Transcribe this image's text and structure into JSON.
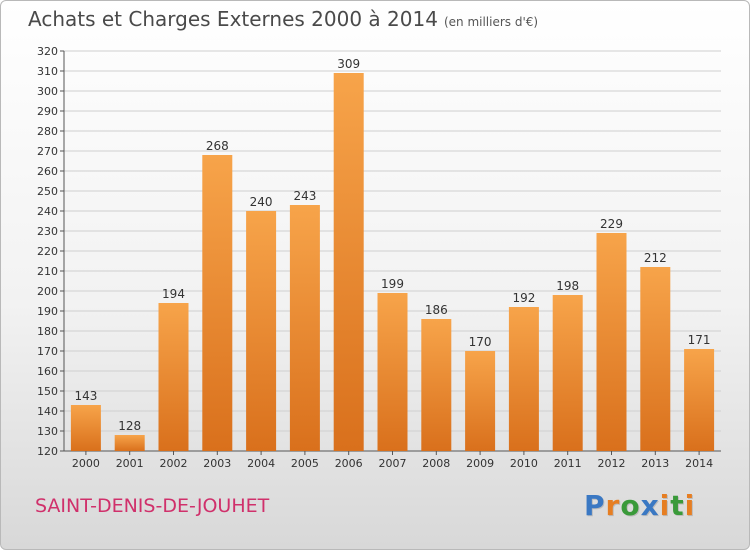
{
  "title": "Achats et Charges Externes 2000 à 2014",
  "subtitle": "(en milliers d'€)",
  "commune": "SAINT-DENIS-DE-JOUHET",
  "logo": {
    "text": "Proxiti",
    "letters": [
      {
        "ch": "P",
        "color": "#3a78c3"
      },
      {
        "ch": "r",
        "color": "#e67e22"
      },
      {
        "ch": "o",
        "color": "#3a9a3a"
      },
      {
        "ch": "x",
        "color": "#3a78c3"
      },
      {
        "ch": "i",
        "color": "#e67e22"
      },
      {
        "ch": "t",
        "color": "#3a9a3a"
      },
      {
        "ch": "i",
        "color": "#e67e22"
      }
    ]
  },
  "colors": {
    "bar_top": "#f7a44a",
    "bar_bottom": "#d9701c",
    "grid": "#cfcfcf",
    "commune": "#d0306b"
  },
  "chart_data": {
    "type": "bar",
    "categories": [
      "2000",
      "2001",
      "2002",
      "2003",
      "2004",
      "2005",
      "2006",
      "2007",
      "2008",
      "2009",
      "2010",
      "2011",
      "2012",
      "2013",
      "2014"
    ],
    "values": [
      143,
      128,
      194,
      268,
      240,
      243,
      309,
      199,
      186,
      170,
      192,
      198,
      229,
      212,
      171
    ],
    "ylim": [
      120,
      320
    ],
    "ytick_step": 10,
    "grid": true
  }
}
